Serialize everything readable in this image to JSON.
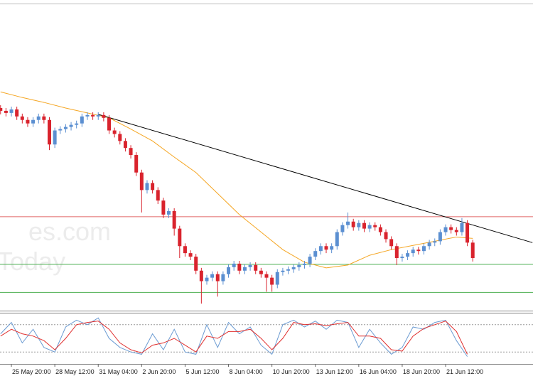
{
  "chart_data": {
    "type": "candlestick",
    "watermark": [
      "es.com",
      "Today"
    ],
    "xlim": [
      -0.1,
      98.1
    ],
    "ylim": [
      0,
      437
    ],
    "xticks": [
      {
        "value": 2,
        "label": "25 May 20:00"
      },
      {
        "value": 10,
        "label": "28 May 12:00"
      },
      {
        "value": 18,
        "label": "31 May 04:00"
      },
      {
        "value": 26,
        "label": "2 Jun 20:00"
      },
      {
        "value": 34,
        "label": "5 Jun 12:00"
      },
      {
        "value": 42,
        "label": "8 Jun 04:00"
      },
      {
        "value": 50,
        "label": "10 Jun 20:00"
      },
      {
        "value": 58,
        "label": "13 Jun 12:00"
      },
      {
        "value": 66,
        "label": "16 Jun 04:00"
      },
      {
        "value": 74,
        "label": "18 Jun 20:00"
      },
      {
        "value": 82,
        "label": "21 Jun 12:00"
      }
    ],
    "candles": {
      "up_color": "#5b8fd1",
      "down_color": "#d9232d",
      "x": [
        0,
        1,
        2,
        3,
        4,
        5,
        6,
        7,
        8,
        9,
        10,
        11,
        12,
        13,
        14,
        15,
        16,
        17,
        18,
        19,
        20,
        21,
        22,
        23,
        24,
        25,
        26,
        27,
        28,
        29,
        30,
        31,
        32,
        33,
        34,
        35,
        36,
        37,
        38,
        39,
        40,
        41,
        42,
        43,
        44,
        45,
        46,
        47,
        48,
        49,
        50,
        51,
        52,
        53,
        54,
        55,
        56,
        57,
        58,
        59,
        60,
        61,
        62,
        63,
        64,
        65,
        66,
        67,
        68,
        69,
        70,
        71,
        72,
        73,
        74,
        75,
        76,
        77,
        78,
        79,
        80,
        81,
        82,
        83,
        84,
        85,
        86,
        87
      ],
      "open": [
        289,
        285,
        282,
        287,
        277,
        272,
        267,
        272,
        277,
        272,
        237,
        257,
        259,
        262,
        265,
        267,
        277,
        279,
        277,
        279,
        275,
        257,
        252,
        242,
        232,
        222,
        197,
        172,
        182,
        172,
        157,
        137,
        142,
        117,
        92,
        82,
        77,
        57,
        42,
        47,
        52,
        42,
        52,
        62,
        67,
        57,
        62,
        65,
        57,
        52,
        47,
        37,
        55,
        57,
        59,
        62,
        65,
        67,
        77,
        85,
        92,
        87,
        92,
        112,
        122,
        127,
        119,
        125,
        117,
        122,
        119,
        112,
        102,
        92,
        75,
        77,
        82,
        87,
        85,
        92,
        97,
        99,
        112,
        119,
        115,
        112,
        125,
        97
      ],
      "high": [
        293,
        289,
        291,
        291,
        281,
        276,
        276,
        281,
        281,
        276,
        261,
        263,
        266,
        269,
        271,
        281,
        283,
        283,
        283,
        283,
        279,
        261,
        256,
        246,
        236,
        226,
        201,
        186,
        186,
        176,
        161,
        146,
        146,
        121,
        96,
        86,
        81,
        61,
        51,
        56,
        56,
        56,
        66,
        71,
        71,
        66,
        69,
        69,
        61,
        56,
        51,
        59,
        61,
        63,
        66,
        69,
        71,
        81,
        89,
        96,
        96,
        96,
        116,
        126,
        140,
        131,
        129,
        129,
        126,
        126,
        123,
        116,
        106,
        96,
        81,
        86,
        91,
        91,
        96,
        101,
        103,
        116,
        123,
        123,
        119,
        132,
        129,
        101
      ],
      "low": [
        280,
        277,
        277,
        272,
        267,
        262,
        262,
        267,
        267,
        229,
        232,
        252,
        254,
        257,
        260,
        262,
        272,
        272,
        272,
        270,
        252,
        247,
        237,
        227,
        217,
        192,
        140,
        167,
        167,
        152,
        132,
        132,
        107,
        75,
        77,
        72,
        52,
        10,
        37,
        42,
        20,
        37,
        47,
        57,
        52,
        52,
        57,
        52,
        47,
        27,
        27,
        32,
        50,
        52,
        54,
        57,
        60,
        62,
        72,
        80,
        82,
        82,
        87,
        107,
        117,
        114,
        114,
        112,
        112,
        114,
        107,
        97,
        87,
        65,
        70,
        72,
        77,
        80,
        80,
        87,
        92,
        94,
        107,
        110,
        107,
        107,
        92,
        70
      ],
      "close": [
        285,
        282,
        287,
        277,
        272,
        267,
        272,
        277,
        272,
        237,
        257,
        259,
        262,
        265,
        267,
        277,
        279,
        277,
        279,
        275,
        257,
        252,
        242,
        232,
        222,
        197,
        172,
        182,
        172,
        157,
        137,
        142,
        117,
        92,
        82,
        77,
        57,
        42,
        47,
        52,
        42,
        52,
        62,
        67,
        57,
        62,
        65,
        57,
        52,
        47,
        37,
        55,
        57,
        59,
        62,
        65,
        67,
        77,
        85,
        92,
        87,
        92,
        112,
        122,
        127,
        119,
        125,
        117,
        122,
        119,
        112,
        102,
        92,
        75,
        77,
        82,
        87,
        85,
        92,
        97,
        99,
        112,
        119,
        115,
        112,
        125,
        97,
        75
      ]
    },
    "moving_average": {
      "color": "#f5a623",
      "x": [
        0,
        4,
        8,
        12,
        16,
        20,
        24,
        28,
        32,
        36,
        40,
        44,
        48,
        52,
        56,
        60,
        64,
        68,
        72,
        76,
        80,
        84,
        87
      ],
      "values": [
        312,
        304,
        297,
        289,
        282,
        275,
        259,
        242,
        219,
        197,
        167,
        137,
        112,
        87,
        69,
        61,
        65,
        79,
        87,
        93,
        99,
        105,
        103
      ]
    },
    "hlines": [
      {
        "value": 134,
        "color": "#e06666"
      },
      {
        "value": 66,
        "color": "#4caf50"
      },
      {
        "value": 26,
        "color": "#4caf50"
      }
    ],
    "trendline": {
      "color": "#000000",
      "x": [
        18,
        98
      ],
      "values": [
        280,
        97
      ]
    },
    "stochastic": {
      "ylim": [
        0,
        100
      ],
      "levels": [
        80,
        20
      ],
      "x": [
        0,
        2,
        4,
        6,
        8,
        10,
        12,
        14,
        16,
        18,
        20,
        22,
        24,
        26,
        28,
        30,
        32,
        34,
        36,
        38,
        40,
        42,
        44,
        46,
        48,
        50,
        52,
        54,
        56,
        58,
        60,
        62,
        64,
        66,
        68,
        70,
        72,
        74,
        76,
        78,
        80,
        82,
        84,
        86
      ],
      "main": {
        "color": "#6b9bd2",
        "values": [
          60,
          85,
          40,
          70,
          30,
          20,
          75,
          90,
          80,
          95,
          50,
          30,
          20,
          15,
          60,
          25,
          70,
          20,
          15,
          80,
          30,
          85,
          60,
          75,
          35,
          15,
          80,
          90,
          75,
          88,
          70,
          90,
          85,
          30,
          70,
          40,
          15,
          30,
          75,
          70,
          85,
          90,
          45,
          10
        ]
      },
      "signal": {
        "color": "#e0302f",
        "values": [
          55,
          70,
          60,
          55,
          45,
          25,
          50,
          80,
          85,
          88,
          70,
          40,
          25,
          18,
          35,
          40,
          50,
          35,
          20,
          55,
          50,
          65,
          65,
          70,
          50,
          25,
          50,
          85,
          80,
          82,
          78,
          82,
          85,
          55,
          55,
          50,
          25,
          22,
          55,
          72,
          80,
          88,
          65,
          15
        ]
      }
    }
  }
}
